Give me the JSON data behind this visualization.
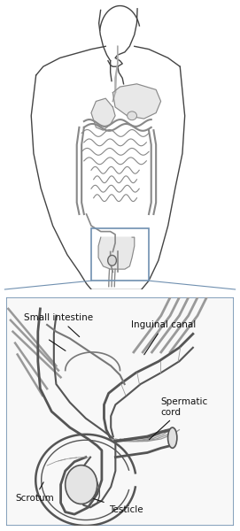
{
  "background_color": "#ffffff",
  "body_color": "#444444",
  "organ_color": "#888888",
  "organ_color2": "#aaaaaa",
  "inset_box_color": "#7090b0",
  "inset_bg_color": "#f8f8f8",
  "label_color": "#111111",
  "detail_color": "#666666",
  "labels": {
    "small_intestine": "Small intestine",
    "inguinal_canal": "Inguinal canal",
    "spermatic_cord": "Spermatic\ncord",
    "scrotum": "Scrotum",
    "testicle": "Testicle"
  },
  "font_size": 7.5,
  "fig_width": 2.71,
  "fig_height": 6.0,
  "dpi": 100
}
